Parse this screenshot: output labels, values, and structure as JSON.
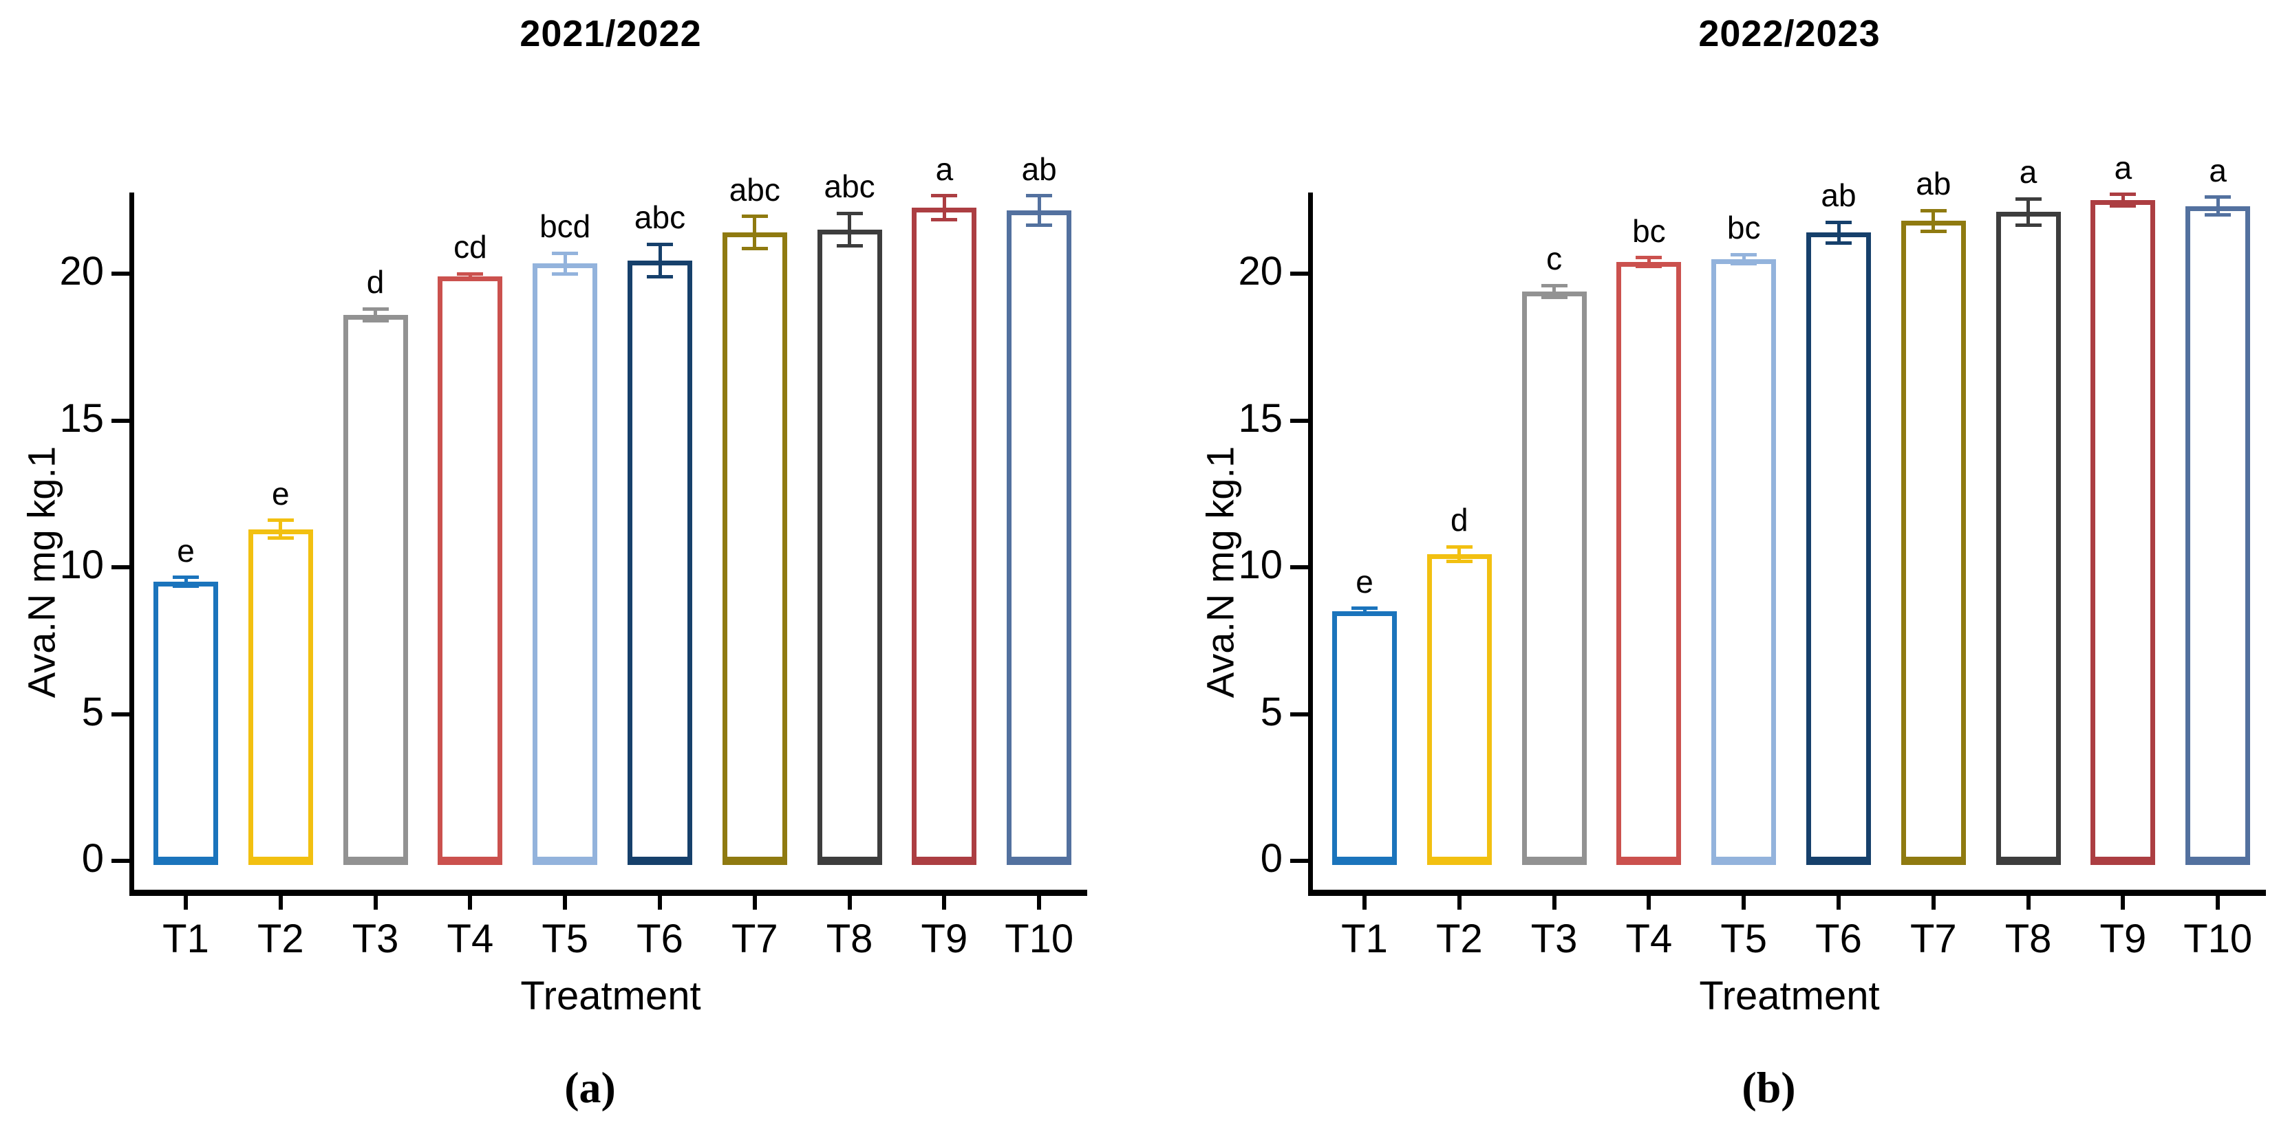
{
  "figure_title": "",
  "axis_color": "#000000",
  "background_color": "#ffffff",
  "chart_data": [
    {
      "type": "bar",
      "panel": "left",
      "title": "2021/2022",
      "caption": "(a)",
      "xlabel": "Treatment",
      "ylabel": "Ava.N mg kg.1",
      "categories": [
        "T1",
        "T2",
        "T3",
        "T4",
        "T5",
        "T6",
        "T7",
        "T8",
        "T9",
        "T10"
      ],
      "values": [
        9.5,
        11.3,
        18.6,
        19.9,
        20.35,
        20.45,
        21.4,
        21.5,
        22.25,
        22.15
      ],
      "errors": [
        0.15,
        0.3,
        0.2,
        0.1,
        0.35,
        0.55,
        0.55,
        0.55,
        0.4,
        0.5
      ],
      "sig_letters": [
        "e",
        "e",
        "d",
        "cd",
        "bcd",
        "abc",
        "abc",
        "abc",
        "a",
        "ab"
      ],
      "bar_colors": [
        "#1B74BC",
        "#F2C011",
        "#929292",
        "#CB514E",
        "#93B3DC",
        "#16406B",
        "#8F7A10",
        "#3D3D3D",
        "#AC3E42",
        "#53719F"
      ],
      "bar_fill": "#ffffff",
      "y_ticks": [
        0,
        5,
        10,
        15,
        20
      ],
      "ylim": [
        0,
        23
      ],
      "grid": false,
      "legend_position": "none"
    },
    {
      "type": "bar",
      "panel": "right",
      "title": "2022/2023",
      "caption": "(b)",
      "xlabel": "Treatment",
      "ylabel": "Ava.N mg kg.1",
      "categories": [
        "T1",
        "T2",
        "T3",
        "T4",
        "T5",
        "T6",
        "T7",
        "T8",
        "T9",
        "T10"
      ],
      "values": [
        8.5,
        10.45,
        19.4,
        20.4,
        20.5,
        21.4,
        21.8,
        22.1,
        22.5,
        22.3
      ],
      "errors": [
        0.1,
        0.25,
        0.2,
        0.15,
        0.15,
        0.35,
        0.35,
        0.45,
        0.2,
        0.3
      ],
      "sig_letters": [
        "e",
        "d",
        "c",
        "bc",
        "bc",
        "ab",
        "ab",
        "a",
        "a",
        "a"
      ],
      "bar_colors": [
        "#1B74BC",
        "#F2C011",
        "#929292",
        "#CB514E",
        "#93B3DC",
        "#16406B",
        "#8F7A10",
        "#3D3D3D",
        "#AC3E42",
        "#53719F"
      ],
      "bar_fill": "#ffffff",
      "y_ticks": [
        0,
        5,
        10,
        15,
        20
      ],
      "ylim": [
        0,
        23
      ],
      "grid": false,
      "legend_position": "none"
    }
  ]
}
